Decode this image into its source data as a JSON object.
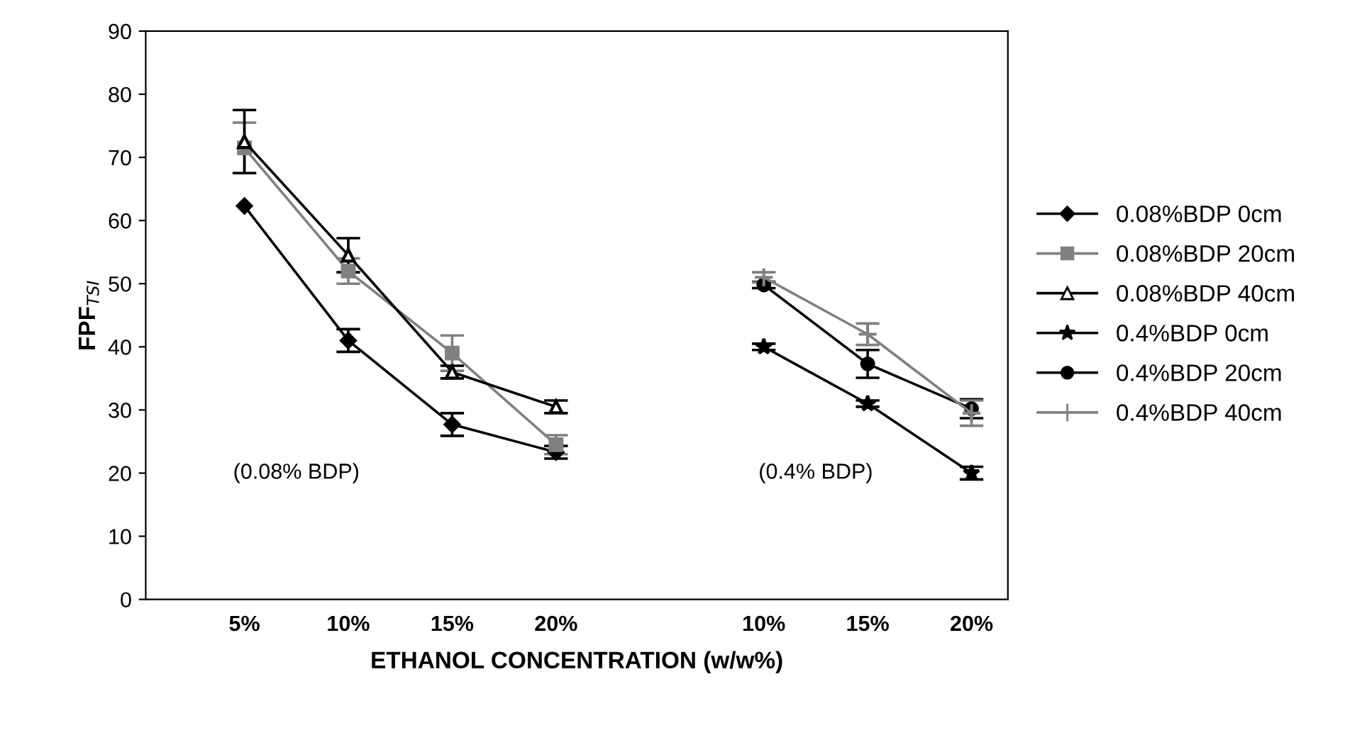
{
  "chart_data": {
    "type": "line",
    "xlabel": "ETHANOL CONCENTRATION (w/w%)",
    "ylabel": "FPF$_{TSI}$",
    "categories": [
      "5%",
      "10%",
      "15%",
      "20%",
      null,
      "10%",
      "15%",
      "20%"
    ],
    "ylim": [
      0,
      90
    ],
    "yticks": [
      0,
      10,
      20,
      30,
      40,
      50,
      60,
      70,
      80,
      90
    ],
    "grid": false,
    "legend": "right",
    "annotations": [
      "(0.08% BDP)",
      "(0.4% BDP)"
    ],
    "series": [
      {
        "name": "0.08%BDP 0cm",
        "color": "#000000",
        "marker": "diamond",
        "values": [
          62.3,
          41,
          27.7,
          23.3,
          null,
          null,
          null,
          null
        ],
        "errors": [
          null,
          1.8,
          1.8,
          1.0,
          null,
          null,
          null,
          null
        ]
      },
      {
        "name": "0.08%BDP 20cm",
        "color": "#808080",
        "marker": "square",
        "values": [
          71.5,
          52,
          39,
          24.5,
          null,
          null,
          null,
          null
        ],
        "errors": [
          4.0,
          2.0,
          2.8,
          1.5,
          null,
          null,
          null,
          null
        ]
      },
      {
        "name": "0.08%BDP 40cm",
        "color": "#000000",
        "marker": "triangle",
        "values": [
          72.5,
          54.5,
          36,
          30.5,
          null,
          null,
          null,
          null
        ],
        "errors": [
          5.0,
          2.7,
          1.0,
          1.0,
          null,
          null,
          null,
          null
        ]
      },
      {
        "name": "0.4%BDP 0cm",
        "color": "#000000",
        "marker": "star",
        "values": [
          null,
          null,
          null,
          null,
          null,
          40,
          31,
          20
        ],
        "errors": [
          null,
          null,
          null,
          null,
          null,
          0.5,
          0.5,
          1.0
        ]
      },
      {
        "name": "0.4%BDP 20cm",
        "color": "#000000",
        "marker": "circle",
        "values": [
          null,
          null,
          null,
          null,
          null,
          49.8,
          37.3,
          30.2
        ],
        "errors": [
          null,
          null,
          null,
          null,
          null,
          0.5,
          2.2,
          1.5
        ]
      },
      {
        "name": "0.4%BDP 40cm",
        "color": "#808080",
        "marker": "cross",
        "values": [
          null,
          null,
          null,
          null,
          null,
          51,
          42,
          29.5
        ],
        "errors": [
          null,
          null,
          null,
          null,
          null,
          0.8,
          1.7,
          2.0
        ]
      }
    ]
  }
}
